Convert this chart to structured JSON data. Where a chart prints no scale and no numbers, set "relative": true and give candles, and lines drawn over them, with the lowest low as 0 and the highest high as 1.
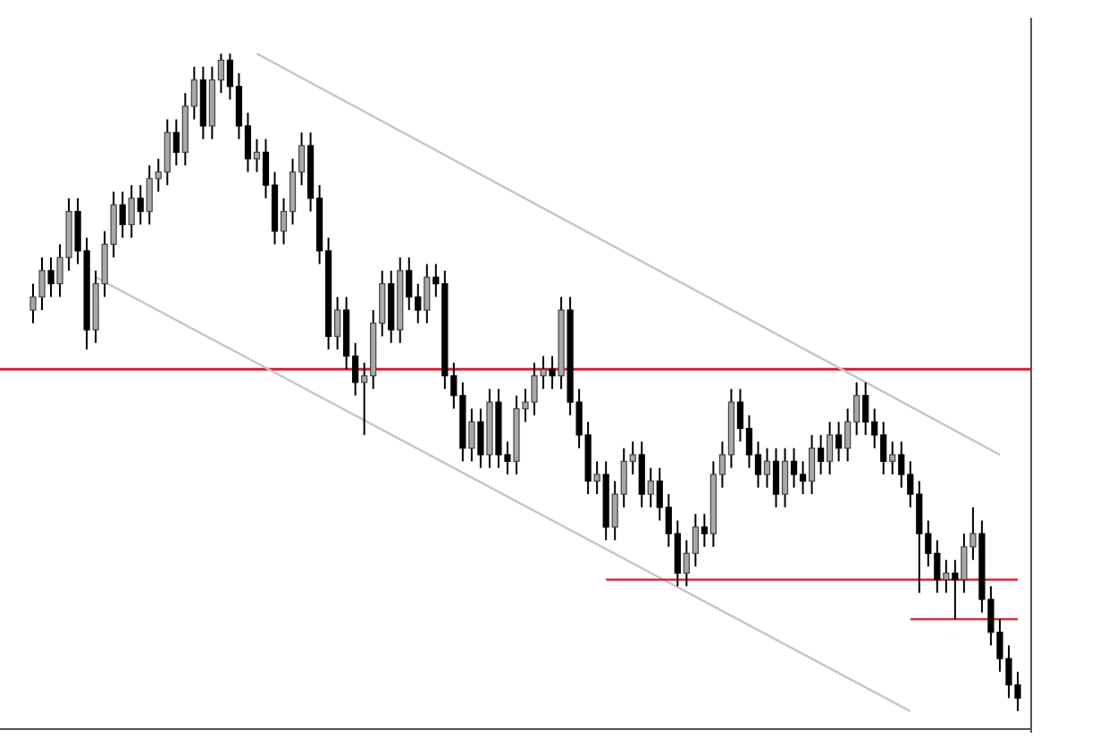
{
  "chart_data": {
    "type": "candlestick",
    "relative": true,
    "categories": [
      null,
      null,
      null,
      null,
      null,
      null,
      null,
      null,
      null,
      null,
      null,
      null,
      null,
      null,
      null,
      null,
      null,
      null,
      null,
      null,
      null,
      null,
      null,
      null,
      null,
      null,
      null,
      null,
      null,
      null,
      null,
      null,
      null,
      null,
      null,
      null,
      null,
      null,
      null,
      null,
      null,
      null,
      null,
      null,
      null,
      null,
      null,
      null,
      null,
      null,
      null,
      null,
      null,
      null,
      null,
      null,
      null,
      null,
      null,
      null,
      null,
      null,
      null,
      null,
      null,
      null,
      null,
      null,
      null,
      null,
      null,
      null,
      null,
      null,
      null,
      null,
      null,
      null,
      null,
      null,
      null,
      null,
      null,
      null,
      null,
      null,
      null,
      null,
      null,
      null,
      null,
      null,
      null,
      null,
      null,
      null,
      null,
      null,
      null,
      null,
      null,
      null,
      null,
      null,
      null,
      null,
      null,
      null,
      null,
      null,
      null
    ],
    "ohlc": [
      [
        0.61,
        0.65,
        0.59,
        0.63
      ],
      [
        0.63,
        0.69,
        0.61,
        0.67
      ],
      [
        0.67,
        0.69,
        0.63,
        0.65
      ],
      [
        0.65,
        0.71,
        0.63,
        0.69
      ],
      [
        0.69,
        0.78,
        0.67,
        0.76
      ],
      [
        0.76,
        0.78,
        0.68,
        0.7
      ],
      [
        0.7,
        0.72,
        0.55,
        0.58
      ],
      [
        0.58,
        0.67,
        0.56,
        0.65
      ],
      [
        0.65,
        0.73,
        0.63,
        0.71
      ],
      [
        0.71,
        0.79,
        0.69,
        0.77
      ],
      [
        0.77,
        0.79,
        0.72,
        0.74
      ],
      [
        0.74,
        0.8,
        0.72,
        0.78
      ],
      [
        0.78,
        0.8,
        0.74,
        0.76
      ],
      [
        0.76,
        0.83,
        0.74,
        0.81
      ],
      [
        0.81,
        0.84,
        0.79,
        0.82
      ],
      [
        0.82,
        0.9,
        0.8,
        0.88
      ],
      [
        0.88,
        0.9,
        0.83,
        0.85
      ],
      [
        0.85,
        0.94,
        0.83,
        0.92
      ],
      [
        0.92,
        0.98,
        0.9,
        0.96
      ],
      [
        0.96,
        0.98,
        0.87,
        0.89
      ],
      [
        0.89,
        0.98,
        0.87,
        0.96
      ],
      [
        0.96,
        1.0,
        0.94,
        0.99
      ],
      [
        0.99,
        1.0,
        0.93,
        0.95
      ],
      [
        0.95,
        0.97,
        0.87,
        0.89
      ],
      [
        0.89,
        0.91,
        0.82,
        0.84
      ],
      [
        0.84,
        0.87,
        0.82,
        0.85
      ],
      [
        0.85,
        0.87,
        0.78,
        0.8
      ],
      [
        0.8,
        0.82,
        0.71,
        0.73
      ],
      [
        0.73,
        0.78,
        0.71,
        0.76
      ],
      [
        0.76,
        0.84,
        0.74,
        0.82
      ],
      [
        0.82,
        0.88,
        0.8,
        0.86
      ],
      [
        0.86,
        0.88,
        0.76,
        0.78
      ],
      [
        0.78,
        0.8,
        0.68,
        0.7
      ],
      [
        0.7,
        0.72,
        0.55,
        0.57
      ],
      [
        0.57,
        0.63,
        0.55,
        0.61
      ],
      [
        0.61,
        0.63,
        0.52,
        0.54
      ],
      [
        0.54,
        0.56,
        0.48,
        0.5
      ],
      [
        0.5,
        0.53,
        0.42,
        0.51
      ],
      [
        0.51,
        0.61,
        0.49,
        0.59
      ],
      [
        0.59,
        0.67,
        0.57,
        0.65
      ],
      [
        0.65,
        0.67,
        0.56,
        0.58
      ],
      [
        0.58,
        0.69,
        0.56,
        0.67
      ],
      [
        0.67,
        0.69,
        0.61,
        0.63
      ],
      [
        0.63,
        0.65,
        0.59,
        0.61
      ],
      [
        0.61,
        0.68,
        0.59,
        0.66
      ],
      [
        0.66,
        0.68,
        0.63,
        0.65
      ],
      [
        0.65,
        0.67,
        0.49,
        0.51
      ],
      [
        0.51,
        0.53,
        0.46,
        0.48
      ],
      [
        0.48,
        0.5,
        0.38,
        0.4
      ],
      [
        0.4,
        0.46,
        0.38,
        0.44
      ],
      [
        0.44,
        0.46,
        0.37,
        0.39
      ],
      [
        0.39,
        0.49,
        0.37,
        0.47
      ],
      [
        0.47,
        0.49,
        0.37,
        0.39
      ],
      [
        0.39,
        0.41,
        0.36,
        0.38
      ],
      [
        0.38,
        0.48,
        0.36,
        0.46
      ],
      [
        0.46,
        0.49,
        0.44,
        0.47
      ],
      [
        0.47,
        0.53,
        0.45,
        0.51
      ],
      [
        0.51,
        0.54,
        0.49,
        0.52
      ],
      [
        0.52,
        0.54,
        0.49,
        0.51
      ],
      [
        0.51,
        0.63,
        0.49,
        0.61
      ],
      [
        0.61,
        0.63,
        0.45,
        0.47
      ],
      [
        0.47,
        0.49,
        0.4,
        0.42
      ],
      [
        0.42,
        0.44,
        0.33,
        0.35
      ],
      [
        0.35,
        0.38,
        0.33,
        0.36
      ],
      [
        0.36,
        0.38,
        0.26,
        0.28
      ],
      [
        0.28,
        0.35,
        0.26,
        0.33
      ],
      [
        0.33,
        0.4,
        0.31,
        0.38
      ],
      [
        0.38,
        0.41,
        0.36,
        0.39
      ],
      [
        0.39,
        0.41,
        0.31,
        0.33
      ],
      [
        0.33,
        0.37,
        0.31,
        0.35
      ],
      [
        0.35,
        0.37,
        0.29,
        0.31
      ],
      [
        0.31,
        0.33,
        0.25,
        0.27
      ],
      [
        0.27,
        0.29,
        0.19,
        0.21
      ],
      [
        0.21,
        0.26,
        0.19,
        0.24
      ],
      [
        0.24,
        0.3,
        0.22,
        0.28
      ],
      [
        0.28,
        0.3,
        0.25,
        0.27
      ],
      [
        0.27,
        0.38,
        0.25,
        0.36
      ],
      [
        0.36,
        0.41,
        0.34,
        0.39
      ],
      [
        0.39,
        0.49,
        0.37,
        0.47
      ],
      [
        0.47,
        0.49,
        0.41,
        0.43
      ],
      [
        0.43,
        0.45,
        0.37,
        0.39
      ],
      [
        0.39,
        0.41,
        0.34,
        0.36
      ],
      [
        0.36,
        0.4,
        0.34,
        0.38
      ],
      [
        0.38,
        0.4,
        0.31,
        0.33
      ],
      [
        0.33,
        0.4,
        0.31,
        0.38
      ],
      [
        0.38,
        0.4,
        0.34,
        0.36
      ],
      [
        0.36,
        0.38,
        0.33,
        0.35
      ],
      [
        0.35,
        0.42,
        0.33,
        0.4
      ],
      [
        0.4,
        0.42,
        0.36,
        0.38
      ],
      [
        0.38,
        0.44,
        0.36,
        0.42
      ],
      [
        0.42,
        0.44,
        0.38,
        0.4
      ],
      [
        0.4,
        0.46,
        0.38,
        0.44
      ],
      [
        0.44,
        0.5,
        0.42,
        0.48
      ],
      [
        0.48,
        0.5,
        0.42,
        0.44
      ],
      [
        0.44,
        0.46,
        0.4,
        0.42
      ],
      [
        0.42,
        0.44,
        0.36,
        0.38
      ],
      [
        0.38,
        0.41,
        0.36,
        0.39
      ],
      [
        0.39,
        0.41,
        0.34,
        0.36
      ],
      [
        0.36,
        0.38,
        0.31,
        0.33
      ],
      [
        0.33,
        0.35,
        0.18,
        0.27
      ],
      [
        0.27,
        0.29,
        0.22,
        0.24
      ],
      [
        0.24,
        0.26,
        0.18,
        0.2
      ],
      [
        0.2,
        0.23,
        0.18,
        0.21
      ],
      [
        0.21,
        0.23,
        0.14,
        0.2
      ],
      [
        0.2,
        0.27,
        0.18,
        0.25
      ],
      [
        0.25,
        0.31,
        0.23,
        0.27
      ],
      [
        0.27,
        0.29,
        0.15,
        0.17
      ],
      [
        0.17,
        0.19,
        0.1,
        0.12
      ],
      [
        0.12,
        0.14,
        0.06,
        0.08
      ],
      [
        0.08,
        0.1,
        0.02,
        0.04
      ],
      [
        0.04,
        0.06,
        0.0,
        0.02
      ]
    ],
    "series": [
      {
        "type": "line",
        "color": "#c4c4c4",
        "values": [
          null,
          null,
          null,
          null,
          null,
          null,
          null,
          null,
          null,
          null,
          null,
          null,
          null,
          null,
          null,
          null,
          null,
          null,
          null,
          null,
          null,
          null,
          null,
          null,
          null,
          1.0,
          null,
          null,
          null,
          null,
          null,
          null,
          null,
          null,
          null,
          null,
          null,
          null,
          null,
          null,
          null,
          null,
          null,
          null,
          null,
          null,
          null,
          null,
          null,
          null,
          null,
          null,
          null,
          null,
          null,
          null,
          null,
          null,
          null,
          null,
          null,
          null,
          null,
          null,
          null,
          null,
          null,
          null,
          null,
          null,
          null,
          null,
          null,
          null,
          null,
          null,
          null,
          null,
          null,
          null,
          null,
          null,
          null,
          null,
          null,
          null,
          null,
          null,
          null,
          null,
          null,
          null,
          null,
          null,
          null,
          null,
          null,
          null,
          null,
          null,
          null,
          null,
          null,
          null,
          null,
          null,
          null,
          null,
          0.39,
          null,
          null
        ]
      },
      {
        "type": "line",
        "color": "#c4c4c4",
        "values": [
          null,
          null,
          null,
          null,
          null,
          null,
          null,
          0.66,
          null,
          null,
          null,
          null,
          null,
          null,
          null,
          null,
          null,
          null,
          null,
          null,
          null,
          null,
          null,
          null,
          null,
          null,
          null,
          null,
          null,
          null,
          null,
          null,
          null,
          null,
          null,
          null,
          null,
          null,
          null,
          null,
          null,
          null,
          null,
          null,
          null,
          null,
          null,
          null,
          null,
          null,
          null,
          null,
          null,
          null,
          null,
          null,
          null,
          null,
          null,
          null,
          null,
          null,
          null,
          null,
          null,
          null,
          null,
          null,
          null,
          null,
          null,
          null,
          null,
          null,
          null,
          null,
          null,
          null,
          null,
          null,
          null,
          null,
          null,
          null,
          null,
          null,
          null,
          null,
          null,
          null,
          null,
          null,
          null,
          null,
          null,
          null,
          null,
          null,
          0.0,
          null,
          null,
          null,
          null,
          null,
          null,
          null,
          null,
          null,
          null,
          null,
          null
        ]
      },
      {
        "type": "line",
        "color": "#d0303c",
        "values": [
          null,
          null,
          null,
          null,
          null,
          null,
          null,
          null,
          null,
          null,
          null,
          null,
          null,
          null,
          null,
          null,
          null,
          null,
          null,
          null,
          null,
          null,
          null,
          null,
          null,
          null,
          null,
          null,
          null,
          null,
          null,
          null,
          null,
          null,
          null,
          null,
          null,
          null,
          null,
          null,
          null,
          null,
          null,
          null,
          null,
          null,
          null,
          null,
          null,
          null,
          null,
          null,
          null,
          null,
          null,
          null,
          null,
          null,
          null,
          null,
          null,
          null,
          null,
          null,
          0.2,
          null,
          null,
          null,
          null,
          null,
          null,
          null,
          null,
          null,
          null,
          null,
          null,
          null,
          null,
          null,
          null,
          null,
          null,
          null,
          null,
          null,
          null,
          null,
          null,
          null,
          null,
          null,
          null,
          null,
          null,
          null,
          null,
          null,
          null,
          null,
          null,
          null,
          null,
          null,
          null,
          null,
          null,
          null,
          null,
          null,
          0.2
        ]
      },
      {
        "type": "line",
        "color": "#d0303c",
        "values": [
          null,
          null,
          null,
          null,
          null,
          null,
          null,
          null,
          null,
          null,
          null,
          null,
          null,
          null,
          null,
          null,
          null,
          null,
          null,
          null,
          null,
          null,
          null,
          null,
          null,
          null,
          null,
          null,
          null,
          null,
          null,
          null,
          null,
          null,
          null,
          null,
          null,
          null,
          null,
          null,
          null,
          null,
          null,
          null,
          null,
          null,
          null,
          null,
          null,
          null,
          null,
          null,
          null,
          null,
          null,
          null,
          null,
          null,
          null,
          null,
          null,
          null,
          null,
          null,
          null,
          null,
          null,
          null,
          null,
          null,
          null,
          null,
          null,
          null,
          null,
          null,
          null,
          null,
          null,
          null,
          null,
          null,
          null,
          null,
          null,
          null,
          null,
          null,
          null,
          null,
          null,
          null,
          null,
          null,
          null,
          null,
          null,
          null,
          0.14,
          null,
          null,
          null,
          null,
          null,
          null,
          null,
          null,
          null,
          null,
          null,
          0.14
        ]
      }
    ],
    "ref_lines": [
      {
        "axis": "y",
        "value": 0.52,
        "color": "#d0203a"
      }
    ]
  }
}
